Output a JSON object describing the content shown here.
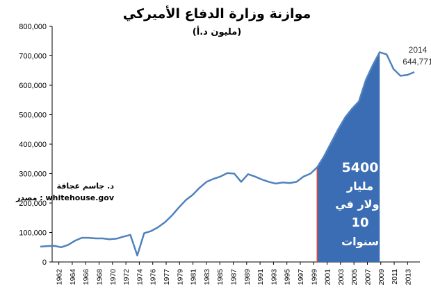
{
  "chart_data": {
    "type": "line",
    "title": "موازنة وزارة الدفاع الأميركي",
    "subtitle": "(مليون د.أ)",
    "ylim": [
      0,
      800000
    ],
    "y_ticks": [
      "0",
      "100,000",
      "200,000",
      "300,000",
      "400,000",
      "500,000",
      "600,000",
      "700,000",
      "800,000"
    ],
    "y_tick_values": [
      0,
      100000,
      200000,
      300000,
      400000,
      500000,
      600000,
      700000,
      800000
    ],
    "x_ticks": [
      "1962",
      "1964",
      "1966",
      "1968",
      "1970",
      "1972",
      "1974",
      "1976",
      "1977",
      "1979",
      "1981",
      "1983",
      "1985",
      "1987",
      "1989",
      "1991",
      "1993",
      "1995",
      "1997",
      "1999",
      "2001",
      "2003",
      "2005",
      "2007",
      "2009",
      "2011",
      "2013"
    ],
    "grid": false,
    "series": [
      {
        "color": "#4f81bd",
        "values": [
          52000,
          54000,
          55000,
          50000,
          58000,
          72000,
          82000,
          82000,
          80000,
          80000,
          77000,
          79000,
          86000,
          92000,
          22000,
          98000,
          105000,
          118000,
          135000,
          158000,
          185000,
          210000,
          228000,
          252000,
          272000,
          282000,
          290000,
          302000,
          300000,
          272000,
          298000,
          290000,
          280000,
          272000,
          266000,
          270000,
          268000,
          272000,
          290000,
          300000,
          322000,
          360000,
          405000,
          450000,
          490000,
          520000,
          545000,
          618000,
          668000,
          712000,
          705000,
          655000,
          632000,
          635000,
          644771
        ]
      }
    ],
    "highlight": {
      "label_lines": [
        "5400",
        "مليار",
        "دولار في",
        "10",
        "سنوات"
      ],
      "color": "#3b6db4"
    },
    "end_label": {
      "year": "2014",
      "value": "644,771"
    },
    "source_lines": [
      "د. جاسم عجاقة",
      "مصدر : whitehouse.gov"
    ]
  }
}
